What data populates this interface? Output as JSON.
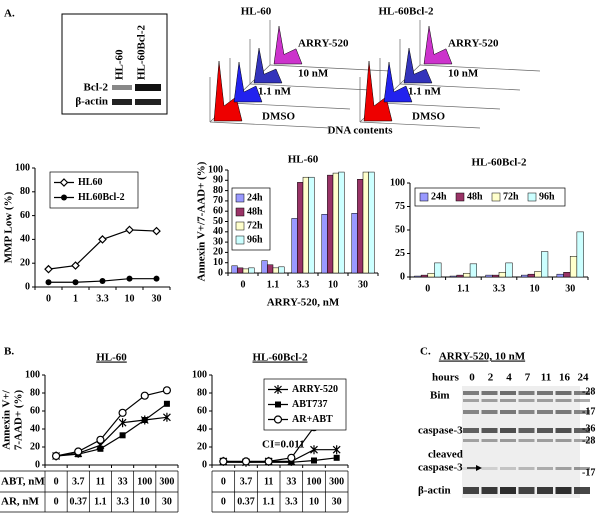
{
  "figure": {
    "panel_a": {
      "label": "A.",
      "blot": {
        "lanes": [
          "HL-60",
          "HL-60Bcl-2"
        ],
        "rows": [
          "Bcl-2",
          "β-actin"
        ]
      },
      "histograms": {
        "panels": [
          "HL-60",
          "HL-60Bcl-2"
        ],
        "traces": [
          "ARRY-520",
          "10 nM",
          "1.1 nM",
          "DMSO"
        ],
        "xlabel": "DNA contents"
      }
    },
    "panel_b": {
      "label": "B.",
      "dose_rows": [
        {
          "label": "ABT, nM",
          "values": [
            0,
            3.7,
            11,
            33,
            100,
            300
          ]
        },
        {
          "label": "AR, nM",
          "values": [
            0,
            0.37,
            1.1,
            3.3,
            10,
            30
          ]
        }
      ]
    },
    "panel_c": {
      "label": "C.",
      "title": "ARRY-520, 10 nM",
      "hours_label": "hours",
      "hours": [
        0,
        2,
        4,
        7,
        11,
        16,
        24
      ],
      "bands": [
        "Bim",
        "caspase-3",
        [
          "cleaved",
          "caspase-3"
        ],
        "β-actin"
      ],
      "markers": [
        "-28",
        "-17",
        "-36",
        "-28",
        "-17"
      ]
    }
  },
  "chart_data": [
    {
      "type": "line",
      "ylabel": "MMP Low (%)",
      "categories": [
        0,
        1,
        3.3,
        10,
        30
      ],
      "series": [
        {
          "name": "HL60",
          "color": "#000000",
          "marker": "diamond-open",
          "values": [
            15,
            18,
            40,
            48,
            47
          ]
        },
        {
          "name": "HL60Bcl-2",
          "color": "#000000",
          "marker": "circle-filled",
          "values": [
            4,
            4,
            5,
            7,
            7
          ]
        }
      ],
      "ylim": [
        0,
        100
      ],
      "yticks": [
        0,
        20,
        40,
        60,
        80,
        100
      ],
      "legend": "top-left"
    },
    {
      "type": "bar",
      "title": "HL-60",
      "ylabel": "Annexin V+/7-AAD+ (%)",
      "xlabel": "ARRY-520, nM",
      "categories": [
        0,
        1.1,
        3.3,
        10,
        30
      ],
      "series": [
        {
          "name": "24h",
          "color": "#9999ff",
          "values": [
            7,
            12,
            53,
            57,
            58
          ]
        },
        {
          "name": "48h",
          "color": "#993366",
          "values": [
            5,
            8,
            88,
            95,
            91
          ]
        },
        {
          "name": "72h",
          "color": "#ffffcc",
          "values": [
            4,
            5,
            93,
            97,
            98
          ]
        },
        {
          "name": "96h",
          "color": "#ccffff",
          "values": [
            5,
            6,
            93,
            98,
            98
          ]
        }
      ],
      "ylim": [
        0,
        100
      ],
      "yticks": [
        0,
        10,
        20,
        30,
        40,
        50,
        60,
        70,
        80,
        90,
        100
      ],
      "legend": "top-left"
    },
    {
      "type": "bar",
      "title": "HL-60Bcl-2",
      "categories": [
        0,
        1.1,
        3.3,
        10,
        30
      ],
      "series": [
        {
          "name": "24h",
          "color": "#9999ff",
          "values": [
            1,
            1,
            2,
            2,
            3
          ]
        },
        {
          "name": "48h",
          "color": "#993366",
          "values": [
            2,
            2,
            2,
            3,
            5
          ]
        },
        {
          "name": "72h",
          "color": "#ffffcc",
          "values": [
            4,
            4,
            5,
            6,
            22
          ]
        },
        {
          "name": "96h",
          "color": "#ccffff",
          "values": [
            15,
            14,
            15,
            27,
            48
          ]
        }
      ],
      "ylim": [
        0,
        100
      ],
      "yticks": [
        0,
        25,
        50,
        75,
        100
      ],
      "legend": "top"
    },
    {
      "type": "line",
      "title": "HL-60",
      "ylabel": [
        "Annexin V+/",
        "7-AAD+ (%)"
      ],
      "series": [
        {
          "color": "#000000",
          "marker": "star",
          "values": [
            10,
            13,
            22,
            47,
            50,
            53
          ]
        },
        {
          "color": "#000000",
          "marker": "square",
          "values": [
            10,
            12,
            18,
            33,
            50,
            68
          ]
        },
        {
          "color": "#000000",
          "marker": "circle-open",
          "values": [
            10,
            15,
            28,
            58,
            77,
            83
          ]
        }
      ],
      "ylim": [
        0,
        100
      ],
      "yticks": [
        0,
        20,
        40,
        60,
        80,
        100
      ]
    },
    {
      "type": "line",
      "title": "HL-60Bcl-2",
      "annotation": "CI=0.011",
      "series": [
        {
          "name": "ARRY-520",
          "color": "#000000",
          "marker": "star",
          "values": [
            4,
            3,
            4,
            4,
            17,
            17
          ]
        },
        {
          "name": "ABT737",
          "color": "#000000",
          "marker": "square",
          "values": [
            3,
            3,
            3,
            3,
            5,
            8
          ]
        },
        {
          "name": "AR+ABT",
          "color": "#000000",
          "marker": "circle-open",
          "values": [
            4,
            4,
            4,
            8,
            42,
            58
          ]
        }
      ],
      "ylim": [
        0,
        100
      ],
      "yticks": [
        0,
        20,
        40,
        60,
        80,
        100
      ],
      "legend": "top-right"
    }
  ]
}
